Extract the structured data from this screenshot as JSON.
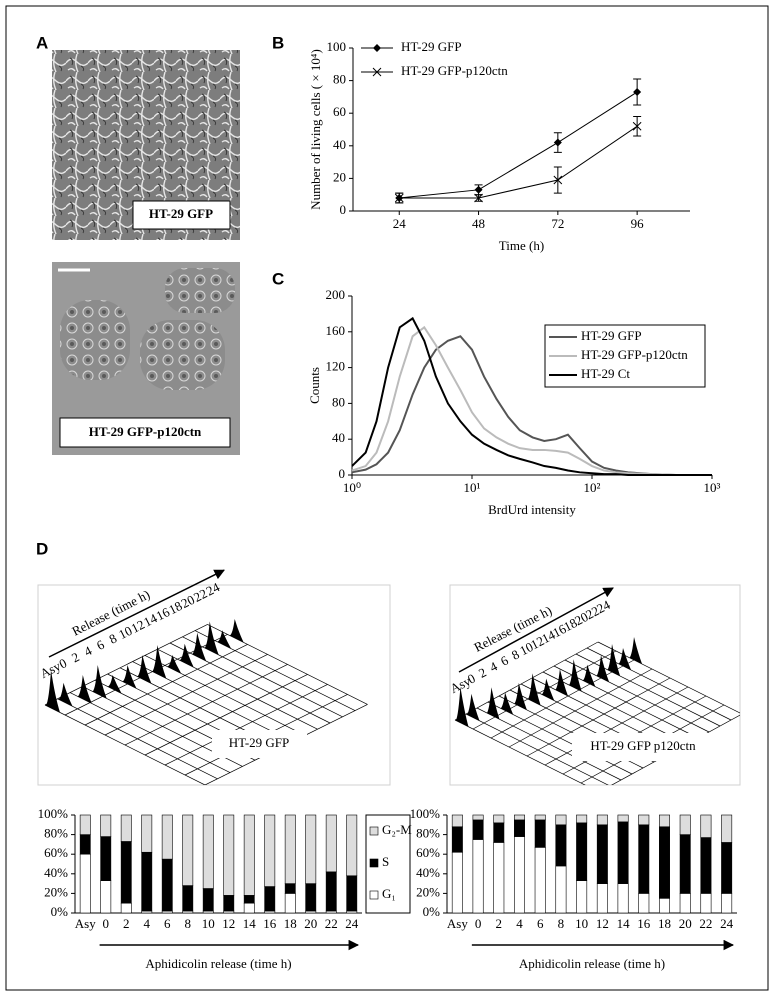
{
  "panels": {
    "A": {
      "label": "A",
      "images": [
        {
          "label": "HT-29 GFP"
        },
        {
          "label": "HT-29 GFP-p120ctn"
        }
      ]
    },
    "D": {
      "label": "D",
      "plots": [
        {
          "axis_label": "Release (time h)",
          "times": [
            "Asy",
            "0",
            "2",
            "4",
            "6",
            "8",
            "10",
            "12",
            "14",
            "16",
            "18",
            "20",
            "22",
            "24"
          ],
          "label": "HT-29 GFP"
        },
        {
          "axis_label": "Release (time h)",
          "times": [
            "Asy",
            "0",
            "2",
            "4",
            "6",
            "8",
            "10",
            "12",
            "14",
            "16",
            "18",
            "20",
            "22",
            "24"
          ],
          "label": "HT-29 GFP p120ctn"
        }
      ]
    }
  },
  "chart_data": [
    {
      "panel": "B",
      "type": "line",
      "x": [
        24,
        48,
        72,
        96
      ],
      "xlim": [
        10,
        112
      ],
      "xticks": [
        24,
        48,
        72,
        96
      ],
      "ylim": [
        0,
        100
      ],
      "yticks": [
        0,
        20,
        40,
        60,
        80,
        100
      ],
      "xlabel": "Time (h)",
      "ylabel": "Number of living cells ( × 10⁴)",
      "legend": "upper left",
      "series": [
        {
          "name": "HT-29 GFP",
          "color": "#000000",
          "marker": "diamond",
          "values": [
            8,
            13,
            42,
            73
          ],
          "errors": [
            3,
            3,
            6,
            8
          ]
        },
        {
          "name": "HT-29 GFP-p120ctn",
          "color": "#000000",
          "marker": "x",
          "values": [
            8,
            8,
            19,
            52
          ],
          "errors": [
            3,
            2,
            8,
            6
          ]
        }
      ]
    },
    {
      "panel": "C",
      "type": "line",
      "xscale": "log",
      "x": [
        1,
        1.3,
        1.6,
        2,
        2.5,
        3.2,
        4,
        5,
        6.3,
        8,
        10,
        12.6,
        16,
        20,
        25,
        32,
        40,
        50,
        63,
        79,
        100,
        126,
        158,
        200,
        316,
        501,
        1000
      ],
      "xlim": [
        1,
        1000
      ],
      "xticks": [
        {
          "value": 1,
          "label": "10⁰"
        },
        {
          "value": 10,
          "label": "10¹"
        },
        {
          "value": 100,
          "label": "10²"
        },
        {
          "value": 1000,
          "label": "10³"
        }
      ],
      "ylim": [
        0,
        200
      ],
      "yticks": [
        0,
        40,
        80,
        120,
        160,
        200
      ],
      "xlabel": "BrdUrd intensity",
      "ylabel": "Counts",
      "legend": "upper right",
      "series": [
        {
          "name": "HT-29 GFP",
          "color": "#555555",
          "line_width": 2,
          "values": [
            3,
            6,
            12,
            25,
            50,
            90,
            120,
            140,
            150,
            155,
            140,
            110,
            85,
            65,
            50,
            42,
            38,
            40,
            45,
            30,
            15,
            8,
            5,
            3,
            1,
            0,
            0
          ]
        },
        {
          "name": "HT-29 GFP-p120ctn",
          "color": "#bbbbbb",
          "line_width": 2,
          "values": [
            5,
            10,
            25,
            60,
            110,
            155,
            165,
            145,
            120,
            95,
            70,
            52,
            42,
            35,
            30,
            28,
            28,
            27,
            25,
            18,
            10,
            5,
            3,
            2,
            1,
            0,
            0
          ]
        },
        {
          "name": "HT-29 Ct",
          "color": "#000000",
          "line_width": 2,
          "values": [
            10,
            25,
            60,
            120,
            165,
            175,
            150,
            110,
            80,
            60,
            45,
            35,
            28,
            22,
            18,
            14,
            10,
            8,
            5,
            3,
            2,
            1,
            1,
            0,
            0,
            0,
            0
          ]
        }
      ]
    },
    {
      "type": "stacked_bar",
      "categories": [
        "Asy",
        "0",
        "2",
        "4",
        "6",
        "8",
        "10",
        "12",
        "14",
        "16",
        "18",
        "20",
        "22",
        "24"
      ],
      "ylim": [
        0,
        100
      ],
      "yticks": [
        {
          "value": 0,
          "label": "0%"
        },
        {
          "value": 20,
          "label": "20%"
        },
        {
          "value": 40,
          "label": "40%"
        },
        {
          "value": 60,
          "label": "60%"
        },
        {
          "value": 80,
          "label": "80%"
        },
        {
          "value": 100,
          "label": "100%"
        }
      ],
      "xlabel": "Aphidicolin release (time h)",
      "legend": "right",
      "series": [
        {
          "name": "G₁",
          "color": "#ffffff",
          "values": [
            60,
            33,
            10,
            2,
            2,
            2,
            2,
            2,
            10,
            2,
            20,
            2,
            2,
            2
          ]
        },
        {
          "name": "S",
          "color": "#000000",
          "values": [
            20,
            45,
            63,
            60,
            53,
            26,
            23,
            16,
            8,
            25,
            10,
            28,
            40,
            36
          ]
        },
        {
          "name": "G₂-M",
          "color": "#dddddd",
          "values": [
            20,
            22,
            27,
            38,
            45,
            72,
            75,
            82,
            82,
            73,
            70,
            70,
            58,
            62
          ]
        }
      ]
    },
    {
      "type": "stacked_bar",
      "categories": [
        "Asy",
        "0",
        "2",
        "4",
        "6",
        "8",
        "10",
        "12",
        "14",
        "16",
        "18",
        "20",
        "22",
        "24"
      ],
      "ylim": [
        0,
        100
      ],
      "yticks": [
        {
          "value": 0,
          "label": "0%"
        },
        {
          "value": 20,
          "label": "20%"
        },
        {
          "value": 40,
          "label": "40%"
        },
        {
          "value": 60,
          "label": "60%"
        },
        {
          "value": 80,
          "label": "80%"
        },
        {
          "value": 100,
          "label": "100%"
        }
      ],
      "xlabel": "Aphidicolin release (time h)",
      "series": [
        {
          "color": "#ffffff",
          "values": [
            62,
            75,
            72,
            78,
            67,
            48,
            33,
            30,
            30,
            20,
            15,
            20,
            20,
            20
          ]
        },
        {
          "color": "#000000",
          "values": [
            26,
            20,
            20,
            17,
            28,
            42,
            59,
            60,
            63,
            70,
            73,
            60,
            57,
            52
          ]
        },
        {
          "color": "#dddddd",
          "values": [
            12,
            5,
            8,
            5,
            5,
            10,
            8,
            10,
            7,
            10,
            12,
            20,
            23,
            28
          ]
        }
      ]
    }
  ]
}
